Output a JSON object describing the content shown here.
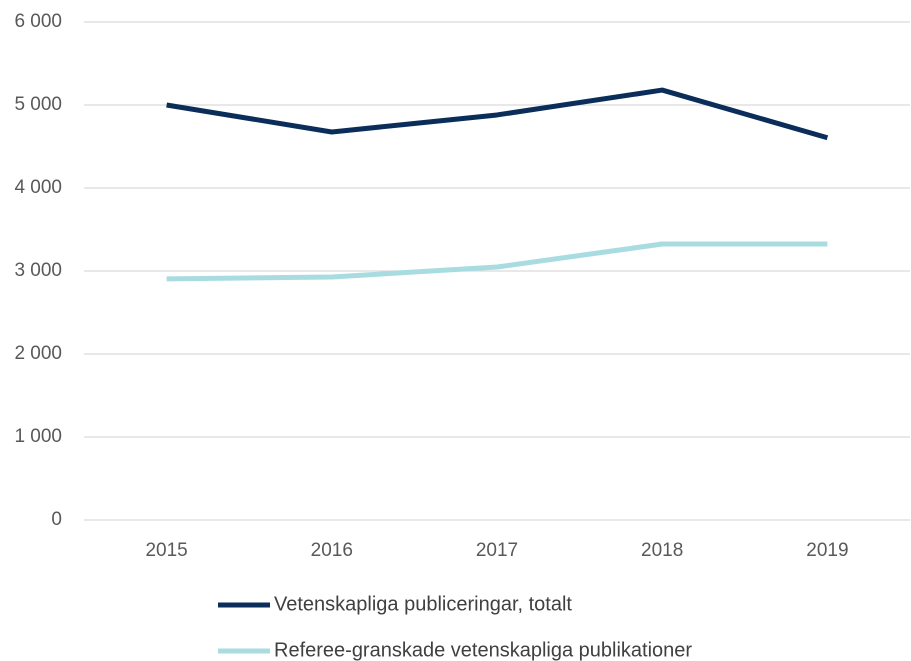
{
  "chart_data": {
    "type": "line",
    "categories": [
      "2015",
      "2016",
      "2017",
      "2018",
      "2019"
    ],
    "series": [
      {
        "name": "Vetenskapliga publiceringar, totalt",
        "color": "#0b2d5a",
        "values": [
          5000,
          4675,
          4880,
          5180,
          4605
        ]
      },
      {
        "name": "Referee-granskade vetenskapliga publikationer",
        "color": "#a8dce1",
        "values": [
          2905,
          2928,
          3048,
          3325,
          3325
        ]
      }
    ],
    "ylim": [
      0,
      6000
    ],
    "yticks": [
      {
        "value": 0,
        "label": "0"
      },
      {
        "value": 1000,
        "label": "1 000"
      },
      {
        "value": 2000,
        "label": "2 000"
      },
      {
        "value": 3000,
        "label": "3 000"
      },
      {
        "value": 4000,
        "label": "4 000"
      },
      {
        "value": 5000,
        "label": "5 000"
      },
      {
        "value": 6000,
        "label": "6 000"
      }
    ],
    "grid": true,
    "legend": "bottom"
  }
}
